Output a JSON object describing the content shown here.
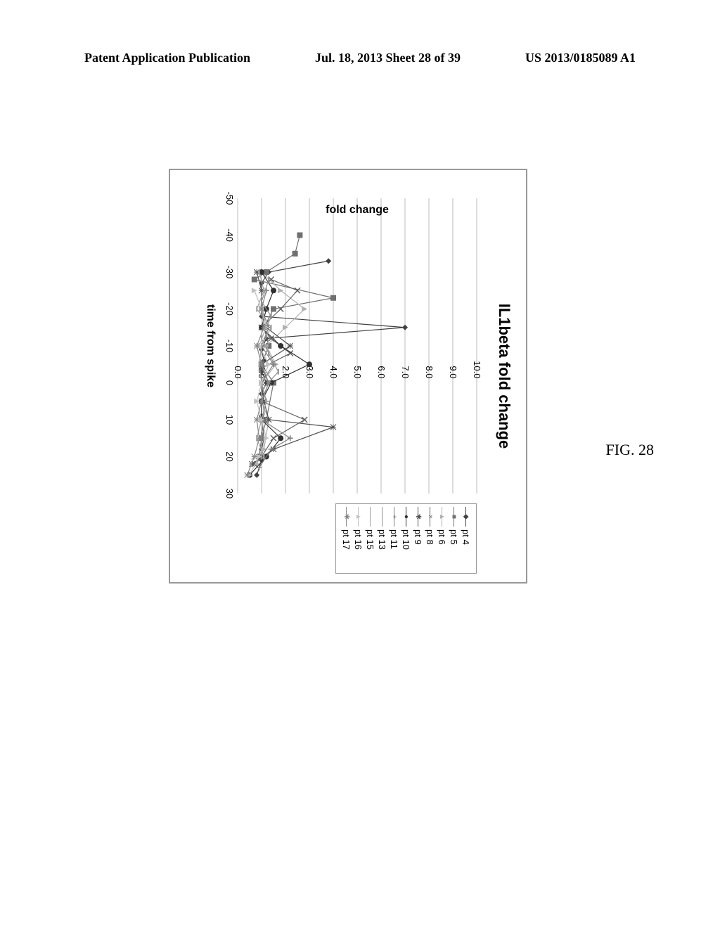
{
  "header": {
    "left": "Patent Application Publication",
    "center": "Jul. 18, 2013  Sheet 28 of 39",
    "right": "US 2013/0185089 A1"
  },
  "figure_caption": "FIG. 28",
  "chart": {
    "type": "line",
    "title": "IL1beta fold change",
    "title_fontsize": 22,
    "xlabel": "time from spike",
    "ylabel": "fold change",
    "label_fontsize": 16,
    "xlim": [
      -50,
      30
    ],
    "ylim": [
      0,
      10
    ],
    "xtick_step": 10,
    "ytick_step": 1,
    "xticks": [
      -50,
      -40,
      -30,
      -20,
      -10,
      0,
      10,
      20,
      30
    ],
    "yticks": [
      0.0,
      1.0,
      2.0,
      3.0,
      4.0,
      5.0,
      6.0,
      7.0,
      8.0,
      9.0,
      10.0
    ],
    "background_color": "#ffffff",
    "grid_color": "#bbbbbb",
    "border_color": "#999999",
    "line_width": 1.2,
    "marker_size": 4,
    "series": [
      {
        "name": "pt 4",
        "color": "#404040",
        "marker": "diamond",
        "x": [
          -33,
          -30,
          -27,
          -18,
          -15,
          -12,
          -9,
          -6,
          -3,
          0,
          3,
          9,
          15,
          18,
          21,
          25
        ],
        "y": [
          3.8,
          1.3,
          1.0,
          1.0,
          7.0,
          1.2,
          1.0,
          1.1,
          1.0,
          1.2,
          1.0,
          1.0,
          1.1,
          1.0,
          1.0,
          0.8
        ]
      },
      {
        "name": "pt 5",
        "color": "#707070",
        "marker": "square",
        "x": [
          -40,
          -35,
          -30,
          -28,
          -23,
          -20,
          -15,
          -10,
          -5,
          0,
          10,
          15,
          20
        ],
        "y": [
          2.6,
          2.4,
          1.2,
          0.7,
          4.0,
          1.5,
          1.1,
          1.3,
          1.0,
          1.5,
          1.2,
          1.0,
          0.9
        ]
      },
      {
        "name": "pt 6",
        "color": "#b0b0b0",
        "marker": "triangle",
        "x": [
          -30,
          -25,
          -20,
          -15,
          -10,
          -5,
          0,
          5,
          10,
          18,
          22
        ],
        "y": [
          1.0,
          1.8,
          2.8,
          2.0,
          1.2,
          1.6,
          1.0,
          1.0,
          1.3,
          1.1,
          0.8
        ]
      },
      {
        "name": "pt 8",
        "color": "#606060",
        "marker": "cross",
        "x": [
          -28,
          -25,
          -20,
          -15,
          -12,
          -8,
          -4,
          0,
          5,
          10,
          15,
          20,
          22
        ],
        "y": [
          1.4,
          2.5,
          1.8,
          1.0,
          1.4,
          2.2,
          1.0,
          1.3,
          1.0,
          2.8,
          1.5,
          1.0,
          0.7
        ]
      },
      {
        "name": "pt 9",
        "color": "#505050",
        "marker": "star",
        "x": [
          -30,
          -25,
          -20,
          -15,
          -10,
          -5,
          0,
          5,
          10,
          12,
          18,
          22
        ],
        "y": [
          0.8,
          1.0,
          1.0,
          1.2,
          2.2,
          1.0,
          1.0,
          1.1,
          1.3,
          4.0,
          1.5,
          0.6
        ]
      },
      {
        "name": "pt 10",
        "color": "#303030",
        "marker": "circle",
        "x": [
          -30,
          -25,
          -20,
          -15,
          -10,
          -5,
          0,
          5,
          10,
          15,
          20,
          25
        ],
        "y": [
          1.0,
          1.5,
          1.2,
          1.0,
          1.8,
          3.0,
          1.4,
          1.0,
          1.0,
          1.8,
          1.2,
          0.5
        ]
      },
      {
        "name": "pt 11",
        "color": "#808080",
        "marker": "plus",
        "x": [
          -25,
          -20,
          -15,
          -10,
          -5,
          0,
          5,
          10,
          15,
          18,
          23
        ],
        "y": [
          1.2,
          1.0,
          1.3,
          1.0,
          1.5,
          1.0,
          1.2,
          1.0,
          2.2,
          1.4,
          0.9
        ]
      },
      {
        "name": "pt 13",
        "color": "#909090",
        "marker": "dash",
        "x": [
          -28,
          -22,
          -18,
          -12,
          -8,
          -3,
          2,
          8,
          14,
          20
        ],
        "y": [
          1.3,
          1.0,
          1.4,
          1.0,
          1.3,
          1.7,
          1.0,
          1.1,
          1.0,
          1.0
        ]
      },
      {
        "name": "pt 15",
        "color": "#a0a0a0",
        "marker": "dash",
        "x": [
          -30,
          -25,
          -20,
          -15,
          -10,
          -5,
          0,
          5,
          10,
          15,
          20
        ],
        "y": [
          0.9,
          1.1,
          0.8,
          1.4,
          1.0,
          0.9,
          1.0,
          1.2,
          1.0,
          0.8,
          1.1
        ]
      },
      {
        "name": "pt 16",
        "color": "#c0c0c0",
        "marker": "triangle",
        "x": [
          -25,
          -20,
          -15,
          -10,
          -5,
          0,
          5,
          10,
          15,
          20,
          25
        ],
        "y": [
          0.7,
          1.0,
          1.2,
          0.9,
          1.3,
          1.0,
          0.8,
          1.0,
          1.2,
          0.9,
          0.5
        ]
      },
      {
        "name": "pt 17",
        "color": "#888888",
        "marker": "star",
        "x": [
          -20,
          -15,
          -10,
          -5,
          0,
          5,
          10,
          15,
          20,
          25
        ],
        "y": [
          1.0,
          1.1,
          0.8,
          1.0,
          1.3,
          1.0,
          0.8,
          0.9,
          0.7,
          0.4
        ]
      }
    ]
  }
}
